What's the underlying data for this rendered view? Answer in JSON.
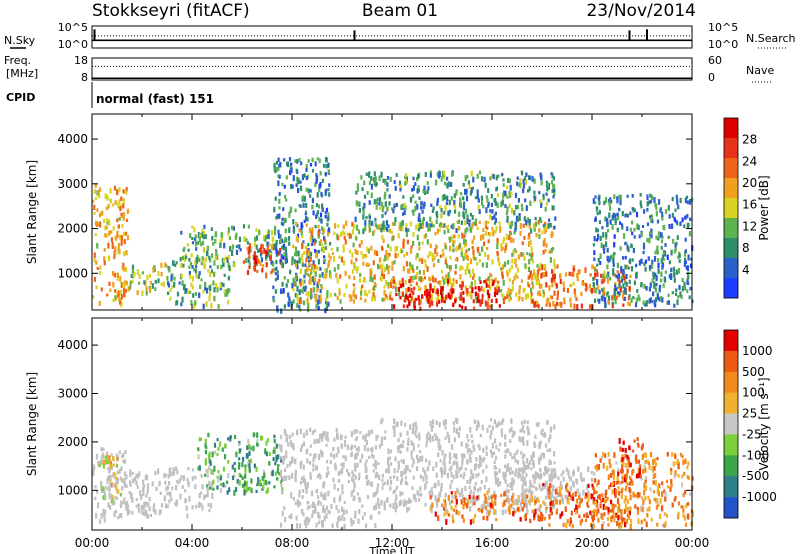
{
  "header": {
    "station": "Stokkseyri (fitACF)",
    "beam": "Beam 01",
    "date": "23/Nov/2014"
  },
  "top_panels": {
    "nsky_label": "N.Sky",
    "nsearch_label": "N.Search",
    "noise_ticks": [
      "10^5",
      "10^0"
    ],
    "freq_label": "Freq.",
    "freq_unit": "[MHz]",
    "freq_ticks": [
      "18",
      "8"
    ],
    "nave_label": "Nave",
    "nave_ticks": [
      "60",
      "0"
    ],
    "cpid_label": "CPID",
    "cpid_value": "normal (fast) 151"
  },
  "colors": {
    "power_scale": [
      "#1f3dff",
      "#2b5fc9",
      "#2f8f6a",
      "#5cb34f",
      "#d9d422",
      "#f0a020",
      "#ef6418",
      "#e8321a",
      "#e00000"
    ],
    "velocity_scale": [
      "#2452c8",
      "#2f7f8a",
      "#3aa54a",
      "#7ccf3c",
      "#c8c8c8",
      "#f0b030",
      "#f08a1c",
      "#ee5a14",
      "#e20000"
    ],
    "ground_scatter": "#c0c0c0"
  },
  "chart_data": [
    {
      "type": "line",
      "name": "noise",
      "series": [
        {
          "name": "N.Sky",
          "style": "solid",
          "level": 0.35,
          "spikes": [
            [
              0.1,
              0.85
            ],
            [
              10.5,
              0.8
            ],
            [
              21.5,
              0.8
            ],
            [
              22.2,
              0.85
            ]
          ]
        },
        {
          "name": "N.Search",
          "style": "dotted",
          "level": 0.55
        }
      ]
    },
    {
      "type": "line",
      "name": "freq-nave",
      "series": [
        {
          "name": "Freq.",
          "style": "solid",
          "value_mhz": 8.8,
          "ylim": [
            8,
            18
          ]
        },
        {
          "name": "Nave",
          "style": "dotted",
          "value": 37,
          "ylim": [
            0,
            60
          ]
        }
      ]
    },
    {
      "type": "heatmap",
      "title": "Power",
      "ylabel": "Slant Range [km]",
      "colorbar_label": "Power [dB]",
      "colorbar_ticks": [
        "28",
        "24",
        "20",
        "16",
        "12",
        "8",
        "4"
      ],
      "ylim": [
        180,
        4560
      ],
      "yticks": [
        1000,
        2000,
        3000,
        4000
      ],
      "xlim": [
        0,
        24
      ],
      "regions": [
        {
          "t": [
            0,
            1.4
          ],
          "r": [
            300,
            3000
          ],
          "level": 0.6
        },
        {
          "t": [
            1.4,
            3.0
          ],
          "r": [
            600,
            1250
          ],
          "level": 0.45
        },
        {
          "t": [
            3.0,
            5.5
          ],
          "r": [
            300,
            1400
          ],
          "level": 0.35
        },
        {
          "t": [
            3.5,
            7.8
          ],
          "r": [
            1200,
            2100
          ],
          "level": 0.35
        },
        {
          "t": [
            6.0,
            7.6
          ],
          "r": [
            1000,
            1700
          ],
          "level": 0.75
        },
        {
          "t": [
            7.2,
            9.5
          ],
          "r": [
            200,
            3600
          ],
          "level": 0.25
        },
        {
          "t": [
            8.0,
            18.5
          ],
          "r": [
            400,
            2200
          ],
          "level": 0.55
        },
        {
          "t": [
            12.0,
            16.5
          ],
          "r": [
            250,
            900
          ],
          "level": 0.92
        },
        {
          "t": [
            10.5,
            18.5
          ],
          "r": [
            2000,
            3300
          ],
          "level": 0.3
        },
        {
          "t": [
            17.5,
            21.5
          ],
          "r": [
            300,
            1200
          ],
          "level": 0.7
        },
        {
          "t": [
            20.0,
            24.0
          ],
          "r": [
            300,
            2800
          ],
          "level": 0.25
        }
      ]
    },
    {
      "type": "heatmap",
      "title": "Velocity",
      "ylabel": "Slant Range [km]",
      "xlabel": "Time UT",
      "colorbar_label": "Velocity [m s⁻¹]",
      "colorbar_ticks": [
        "1000",
        "500",
        "100",
        "25",
        "-25",
        "-100",
        "-500",
        "-1000"
      ],
      "ylim": [
        180,
        4560
      ],
      "yticks": [
        1000,
        2000,
        3000,
        4000
      ],
      "xlim": [
        0,
        24
      ],
      "xticks": [
        "00:00",
        "04:00",
        "08:00",
        "12:00",
        "16:00",
        "20:00",
        "00:00"
      ],
      "regions": [
        {
          "t": [
            0,
            1.3
          ],
          "r": [
            400,
            1900
          ],
          "kind": "ground"
        },
        {
          "t": [
            0.2,
            1.2
          ],
          "r": [
            800,
            1800
          ],
          "level": 0.55
        },
        {
          "t": [
            1.3,
            4.8
          ],
          "r": [
            500,
            1500
          ],
          "kind": "ground"
        },
        {
          "t": [
            4.2,
            7.6
          ],
          "r": [
            1000,
            2200
          ],
          "level": 0.3
        },
        {
          "t": [
            7.5,
            11.5
          ],
          "r": [
            300,
            2300
          ],
          "kind": "ground"
        },
        {
          "t": [
            11.5,
            18.5
          ],
          "r": [
            600,
            2500
          ],
          "kind": "ground"
        },
        {
          "t": [
            13.5,
            18.0
          ],
          "r": [
            400,
            1000
          ],
          "level": 0.75
        },
        {
          "t": [
            16.5,
            20.0
          ],
          "r": [
            800,
            1500
          ],
          "kind": "ground"
        },
        {
          "t": [
            18.0,
            21.5
          ],
          "r": [
            300,
            1200
          ],
          "level": 0.8
        },
        {
          "t": [
            20.0,
            24.0
          ],
          "r": [
            300,
            1800
          ],
          "level": 0.7
        },
        {
          "t": [
            21.0,
            22.0
          ],
          "r": [
            1200,
            2100
          ],
          "level": 0.9
        }
      ]
    }
  ]
}
